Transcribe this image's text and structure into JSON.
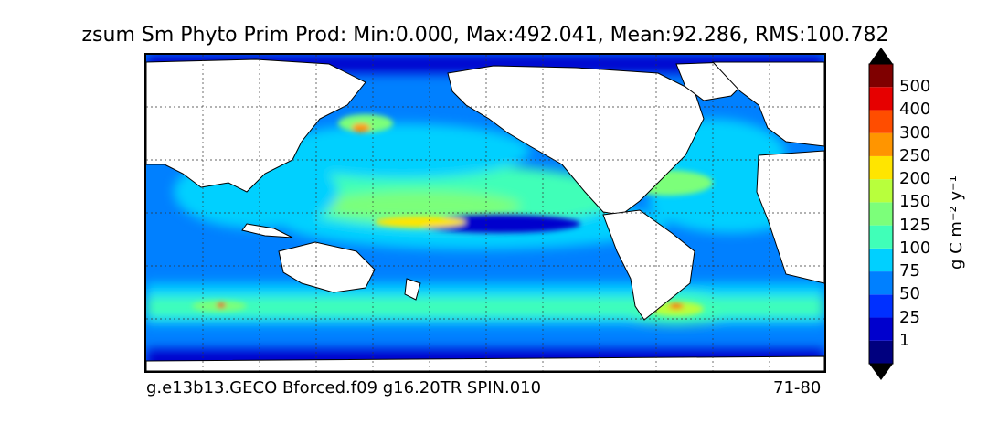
{
  "title": "zsum Sm Phyto Prim Prod: Min:0.000, Max:492.041, Mean:92.286, RMS:100.782",
  "footer": {
    "run_name": "g.e13b13.GECO Bforced.f09 g16.20TR SPIN.010",
    "years": "71-80"
  },
  "colorbar": {
    "label": "g C m⁻² y⁻¹",
    "ticks": [
      "1",
      "25",
      "50",
      "75",
      "100",
      "125",
      "150",
      "200",
      "250",
      "300",
      "400",
      "500"
    ],
    "colors": [
      "#00007f",
      "#0000cd",
      "#0030ff",
      "#0080ff",
      "#00d0ff",
      "#40ffb8",
      "#7cff7a",
      "#b8ff3c",
      "#ffe500",
      "#ff9500",
      "#ff4d00",
      "#e60000",
      "#7f0000"
    ]
  },
  "map": {
    "land_color": "#ffffff",
    "grid": true,
    "projection": "global cylindrical"
  }
}
